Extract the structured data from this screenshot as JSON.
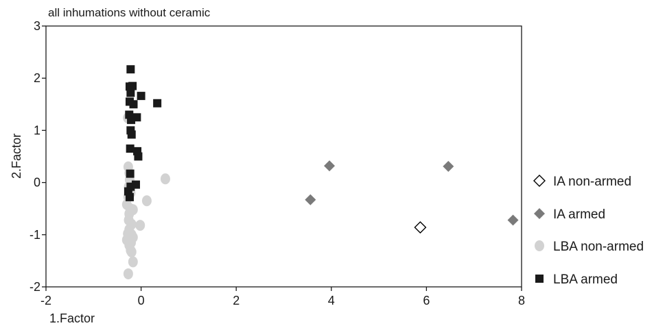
{
  "chart_data": {
    "type": "scatter",
    "title": "all inhumations without ceramic",
    "xlabel": "1.Factor",
    "ylabel": "2.Factor",
    "xlim": [
      -2,
      8
    ],
    "ylim": [
      -2,
      3
    ],
    "xticks": [
      "-2",
      "0",
      "2",
      "4",
      "6",
      "8"
    ],
    "yticks": [
      "3",
      "2",
      "1",
      "0",
      "-1",
      "-2"
    ],
    "legend_position": "right",
    "series": [
      {
        "name": "IA non-armed",
        "marker": "diamond-open",
        "color": "#000000",
        "points": [
          [
            5.87,
            -0.86
          ]
        ]
      },
      {
        "name": "IA armed",
        "marker": "diamond",
        "color": "#7a7a7a",
        "points": [
          [
            3.96,
            0.32
          ],
          [
            3.56,
            -0.33
          ],
          [
            6.46,
            0.31
          ],
          [
            7.82,
            -0.72
          ]
        ]
      },
      {
        "name": "LBA non-armed",
        "marker": "circle",
        "color": "#d2d2d2",
        "points": [
          [
            -0.27,
            0.3
          ],
          [
            -0.25,
            0.18
          ],
          [
            -0.24,
            0.05
          ],
          [
            -0.26,
            -0.08
          ],
          [
            -0.22,
            -0.2
          ],
          [
            -0.3,
            -0.42
          ],
          [
            -0.17,
            -0.52
          ],
          [
            -0.25,
            -0.6
          ],
          [
            -0.26,
            -0.72
          ],
          [
            -0.2,
            -0.8
          ],
          [
            -0.25,
            -0.9
          ],
          [
            -0.2,
            -1.0
          ],
          [
            -0.3,
            -1.1
          ],
          [
            -0.25,
            -1.2
          ],
          [
            -0.22,
            -1.3
          ],
          [
            -0.17,
            -1.05
          ],
          [
            -0.02,
            -0.82
          ],
          [
            0.12,
            -0.35
          ],
          [
            0.51,
            0.07
          ],
          [
            -0.27,
            -1.75
          ],
          [
            -0.17,
            -1.52
          ],
          [
            -0.2,
            -1.33
          ],
          [
            -0.27,
            -0.28
          ],
          [
            -0.28,
            1.24
          ],
          [
            -0.23,
            -0.5
          ],
          [
            -0.21,
            -1.15
          ],
          [
            -0.28,
            -0.98
          ]
        ]
      },
      {
        "name": "LBA armed",
        "marker": "square",
        "color": "#1a1a1a",
        "points": [
          [
            -0.22,
            2.17
          ],
          [
            -0.24,
            1.84
          ],
          [
            -0.18,
            1.85
          ],
          [
            -0.22,
            1.72
          ],
          [
            -0.24,
            1.55
          ],
          [
            -0.16,
            1.5
          ],
          [
            0.34,
            1.52
          ],
          [
            0.0,
            1.66
          ],
          [
            -0.25,
            1.3
          ],
          [
            -0.21,
            1.2
          ],
          [
            -0.09,
            1.25
          ],
          [
            -0.22,
            1.0
          ],
          [
            -0.2,
            0.92
          ],
          [
            -0.23,
            0.65
          ],
          [
            -0.08,
            0.6
          ],
          [
            -0.06,
            0.5
          ],
          [
            -0.23,
            0.17
          ],
          [
            -0.11,
            -0.04
          ],
          [
            -0.27,
            -0.17
          ],
          [
            -0.24,
            -0.28
          ],
          [
            -0.22,
            -0.08
          ]
        ]
      }
    ]
  }
}
